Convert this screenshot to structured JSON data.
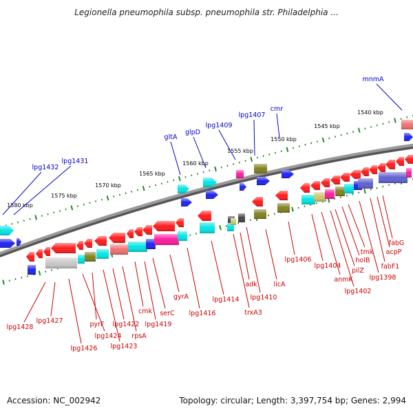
{
  "title": "Legionella pneumophila subsp. pneumophila str. Philadelphia ...",
  "accession_text": "Accession: NC_002942",
  "summary_text": "Topology: circular; Length: 3,397,754 bp; Genes: 2,994",
  "colors": {
    "forward_label": "#0000cc",
    "reverse_label": "#cc0000",
    "backbone": "#888888",
    "tick": "#228822"
  },
  "scale_labels": [
    "1540 kbp",
    "1545 kbp",
    "1550 kbp",
    "1555 kbp",
    "1560 kbp",
    "1565 kbp",
    "1570 kbp",
    "1575 kbp",
    "1580 kbp"
  ],
  "forward_labels": [
    "mnmA",
    "cmr",
    "lpg1407",
    "lpg1409",
    "glpD",
    "gltA",
    "lpg1431",
    "lpg1432"
  ],
  "reverse_labels": [
    "fabG",
    "acpP",
    "fabF1",
    "lpg1398",
    "tmk",
    "holB",
    "pilZ",
    "lpg1402",
    "anmK",
    "lpg1404",
    "lpg1406",
    "licA",
    "lpg1410",
    "adk",
    "trxA3",
    "lpg1414",
    "lpg1416",
    "gyrA",
    "serC",
    "lpg1419",
    "cmk",
    "rpsA",
    "lpg1422",
    "lpg1423",
    "pyrF",
    "lpg1424",
    "lpg1426",
    "lpg1427",
    "lpg1428"
  ]
}
